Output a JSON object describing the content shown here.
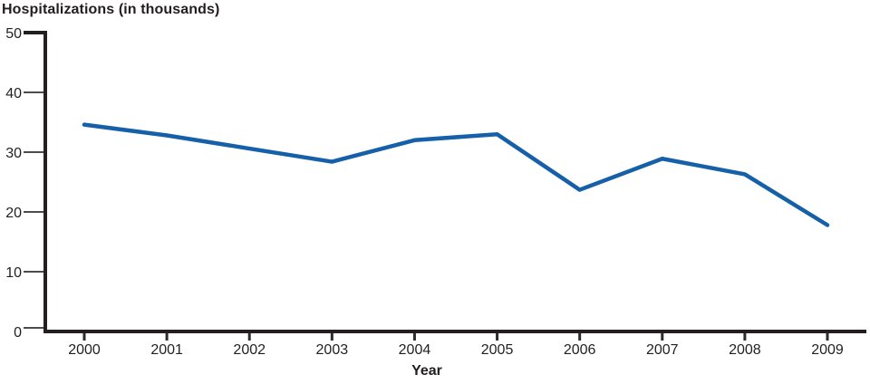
{
  "chart_data": {
    "type": "line",
    "title": "Hospitalizations (in thousands)",
    "xlabel": "Year",
    "ylabel": "Hospitalizations (in thousands)",
    "categories": [
      "2000",
      "2001",
      "2002",
      "2003",
      "2004",
      "2005",
      "2006",
      "2007",
      "2008",
      "2009"
    ],
    "series": [
      {
        "name": "Hospitalizations",
        "values": [
          34.6,
          32.8,
          30.6,
          28.4,
          32.0,
          33.0,
          23.7,
          28.9,
          26.3,
          17.8
        ]
      }
    ],
    "ylim": [
      0,
      50
    ],
    "yticks": [
      0,
      10,
      20,
      30,
      40,
      50
    ],
    "grid": false,
    "legend": null,
    "colors": {
      "line": "#1560a8",
      "axis": "#231f20",
      "y_tick": "#4c4c4e",
      "x_tick": "#2e2b2c",
      "text": "#231f20"
    }
  }
}
